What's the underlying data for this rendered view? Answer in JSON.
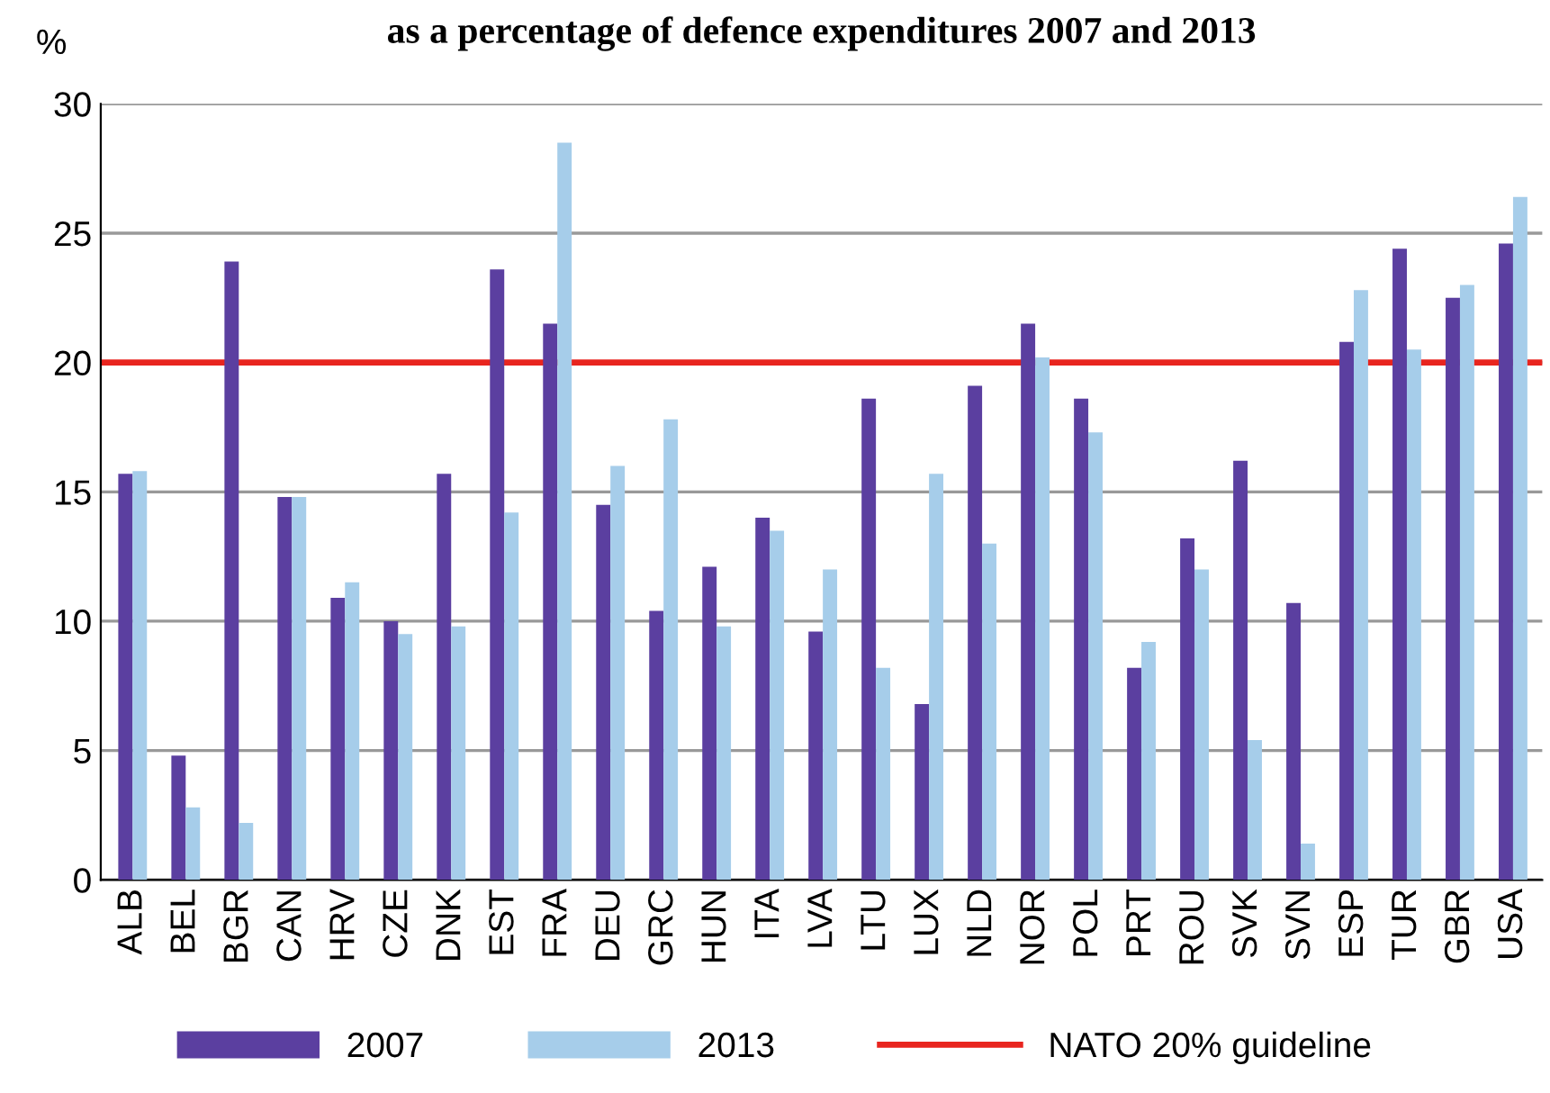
{
  "chart_data": {
    "type": "bar",
    "title": "as a percentage of defence expenditures 2007 and 2013",
    "ylabel": "%",
    "categories": [
      "ALB",
      "BEL",
      "BGR",
      "CAN",
      "HRV",
      "CZE",
      "DNK",
      "EST",
      "FRA",
      "DEU",
      "GRC",
      "HUN",
      "ITA",
      "LVA",
      "LTU",
      "LUX",
      "NLD",
      "NOR",
      "POL",
      "PRT",
      "ROU",
      "SVK",
      "SVN",
      "ESP",
      "TUR",
      "GBR",
      "USA"
    ],
    "series": [
      {
        "name": "2007",
        "color": "#5b3fa0",
        "values": [
          15.7,
          4.8,
          23.9,
          14.8,
          10.9,
          10.0,
          15.7,
          23.6,
          21.5,
          14.5,
          10.4,
          12.1,
          14.0,
          9.6,
          18.6,
          6.8,
          19.1,
          21.5,
          18.6,
          8.2,
          13.2,
          16.2,
          10.7,
          20.8,
          24.4,
          22.5,
          24.6
        ]
      },
      {
        "name": "2013",
        "color": "#a6cdea",
        "values": [
          15.8,
          2.8,
          2.2,
          14.8,
          11.5,
          9.5,
          9.8,
          14.2,
          28.5,
          16.0,
          17.8,
          9.8,
          13.5,
          12.0,
          8.2,
          15.7,
          13.0,
          20.2,
          17.3,
          9.2,
          12.0,
          5.4,
          1.4,
          22.8,
          20.5,
          23.0,
          26.4
        ]
      }
    ],
    "ref_lines": [
      {
        "axis": "y",
        "value": 20,
        "label": "NATO 20% guideline",
        "color": "#e8251f",
        "line_style": "solid"
      }
    ],
    "ylim": [
      0,
      30
    ],
    "yticks": [
      0,
      5,
      10,
      15,
      20,
      25,
      30
    ],
    "grid": "y",
    "legend": "bottom"
  }
}
